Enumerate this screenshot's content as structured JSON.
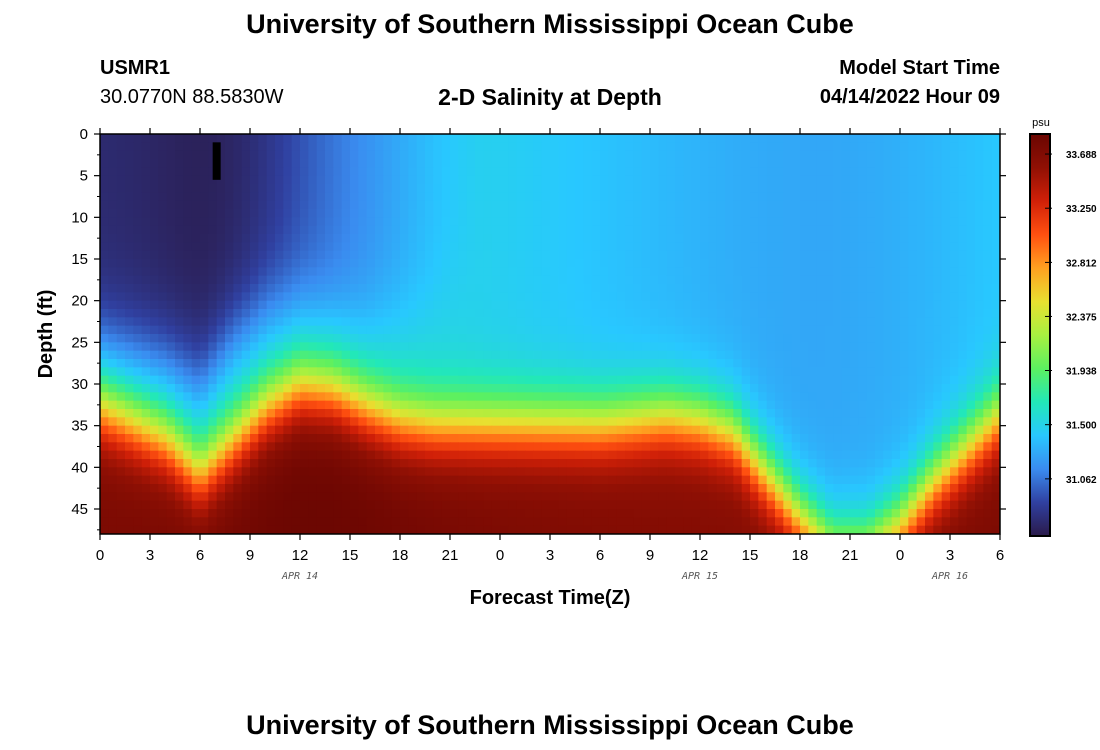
{
  "header": {
    "title": "University of Southern Mississippi Ocean Cube",
    "station_id": "USMR1",
    "coordinates": "30.0770N  88.5830W",
    "model_start_label": "Model Start Time",
    "model_start_value": "04/14/2022 Hour 09",
    "footer_title": "University of Southern Mississippi Ocean Cube"
  },
  "chart_data": {
    "type": "heatmap",
    "title": "2-D Salinity at Depth",
    "xlabel": "Forecast Time(Z)",
    "ylabel": "Depth (ft)",
    "x_hours_range": [
      0,
      54
    ],
    "x_tick_hours": [
      0,
      3,
      6,
      9,
      12,
      15,
      18,
      21,
      24,
      27,
      30,
      33,
      36,
      39,
      42,
      45,
      48,
      51,
      54
    ],
    "x_tick_labels": [
      "0",
      "3",
      "6",
      "9",
      "12",
      "15",
      "18",
      "21",
      "0",
      "3",
      "6",
      "9",
      "12",
      "15",
      "18",
      "21",
      "0",
      "3",
      "6"
    ],
    "date_labels": [
      {
        "label": "APR 14",
        "hour": 12
      },
      {
        "label": "APR 15",
        "hour": 36
      },
      {
        "label": "APR 16",
        "hour": 51
      }
    ],
    "y_range": [
      0,
      48
    ],
    "y_ticks": [
      0,
      5,
      10,
      15,
      20,
      25,
      30,
      35,
      40,
      45
    ],
    "colorbar": {
      "unit": "psu",
      "range": [
        30.6,
        33.85
      ],
      "tick_values": [
        33.688,
        33.25,
        32.812,
        32.375,
        31.938,
        31.5,
        31.062
      ],
      "tick_labels": [
        "33.688",
        "33.250",
        "32.812",
        "32.375",
        "31.938",
        "31.500",
        "31.062"
      ],
      "colors": [
        "#2a1a4a",
        "#3040a0",
        "#3a8cf0",
        "#28c8ff",
        "#22e8b8",
        "#5cf060",
        "#a8f040",
        "#e8e030",
        "#ffa020",
        "#ff5010",
        "#d02008",
        "#901004",
        "#6a0602"
      ]
    },
    "current_time_marker": {
      "hour": 7,
      "depth_range": [
        1,
        5.5
      ]
    },
    "interface_depth_by_hour": {
      "hours": [
        0,
        2,
        4,
        6,
        8,
        10,
        12,
        14,
        16,
        18,
        20,
        22,
        24,
        26,
        28,
        30,
        32,
        34,
        36,
        38,
        40,
        42,
        44,
        46,
        48,
        50,
        52,
        54
      ],
      "halocline_ft": [
        33,
        35,
        37,
        41,
        37,
        33,
        30.5,
        31,
        33,
        34.5,
        35,
        35,
        35,
        35,
        35,
        35,
        34.5,
        34,
        34.5,
        36,
        41,
        46,
        50,
        50,
        47,
        42,
        38,
        34
      ],
      "surface_fresh_ft": [
        26,
        27,
        28,
        30,
        25,
        22,
        21,
        22,
        23,
        22,
        20,
        17,
        15,
        16,
        17,
        17,
        16,
        15,
        13,
        12,
        11,
        11,
        11,
        11,
        11,
        11,
        11,
        11
      ]
    }
  }
}
